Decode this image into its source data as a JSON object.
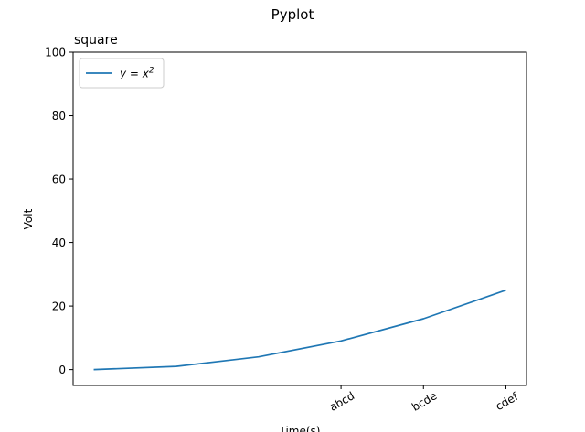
{
  "chart_data": {
    "type": "line",
    "suptitle": "Pyplot",
    "title": "square",
    "xlabel": "Time(s)",
    "ylabel": "Volt",
    "x": [
      0,
      1,
      2,
      3,
      4,
      5
    ],
    "xticks": [
      {
        "x": 3,
        "label": "abcd"
      },
      {
        "x": 4,
        "label": "bcde"
      },
      {
        "x": 5,
        "label": "cdef"
      }
    ],
    "xlim": [
      -0.25,
      5.25
    ],
    "ylim": [
      -5,
      100
    ],
    "yticks": [
      0,
      20,
      40,
      60,
      80,
      100
    ],
    "series": [
      {
        "name": "y = x²",
        "name_math": {
          "base": "y = x",
          "sup": "2"
        },
        "color": "#1f77b4",
        "values": [
          0,
          1,
          4,
          9,
          16,
          25
        ]
      }
    ],
    "legend": "top-left",
    "grid": false
  }
}
